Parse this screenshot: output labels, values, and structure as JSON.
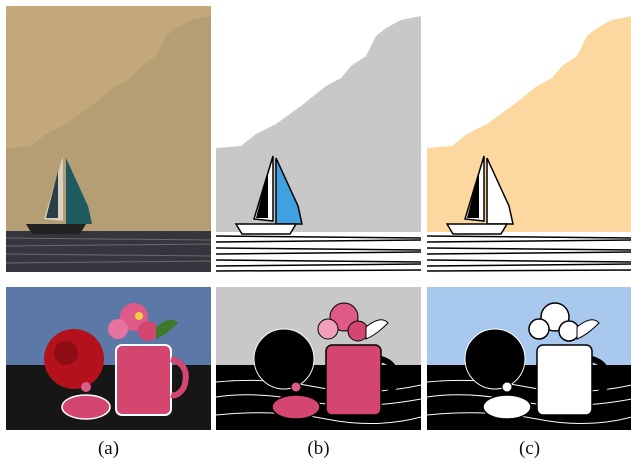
{
  "captions": [
    "(a)",
    "(b)",
    "(c)"
  ],
  "colors": {
    "sail_sky": "#c3a879",
    "sail_mountain": "#b69e74",
    "sail_sea": "#35353d",
    "sail_gray_bg": "#c8c8c8",
    "sail_peach_bg": "#fcd79f",
    "flower_sky": "#5b78a6",
    "flower_table": "#161616",
    "flower_gray_bg": "#c8c8c8",
    "flower_blue_bg": "#a9c8ee",
    "pink": "#d2466f",
    "rose_red": "#b3121d",
    "sail_blue": "#3fa1e0",
    "sail_teal": "#1e5b61"
  }
}
